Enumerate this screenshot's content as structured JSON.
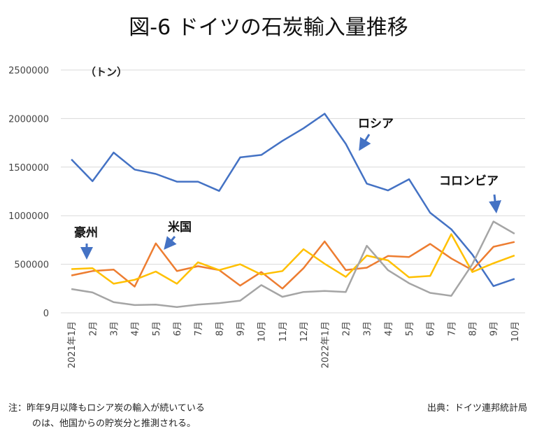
{
  "chart_data": {
    "type": "line",
    "title": "図-6 ドイツの石炭輸入量推移",
    "unit_label": "（トン）",
    "ylim": [
      0,
      2500000
    ],
    "yticks": [
      "0",
      "500000",
      "1000000",
      "1500000",
      "2000000",
      "2500000"
    ],
    "categories": [
      "2021年1月",
      "2月",
      "3月",
      "4月",
      "5月",
      "6月",
      "7月",
      "8月",
      "9月",
      "10月",
      "11月",
      "12月",
      "2022年1月",
      "2月",
      "3月",
      "4月",
      "5月",
      "6月",
      "7月",
      "8月",
      "9月",
      "10月"
    ],
    "series": [
      {
        "name": "ロシア",
        "color": "#4472C4",
        "values": [
          1580000,
          1355000,
          1650000,
          1475000,
          1430000,
          1350000,
          1350000,
          1255000,
          1600000,
          1625000,
          1770000,
          1900000,
          2050000,
          1740000,
          1330000,
          1260000,
          1375000,
          1030000,
          860000,
          600000,
          275000,
          350000
        ]
      },
      {
        "name": "米国",
        "color": "#ED7D31",
        "values": [
          385000,
          430000,
          445000,
          270000,
          715000,
          430000,
          480000,
          440000,
          280000,
          420000,
          250000,
          460000,
          735000,
          440000,
          465000,
          585000,
          575000,
          710000,
          560000,
          440000,
          680000,
          730000
        ]
      },
      {
        "name": "豪州",
        "color": "#FFC000",
        "values": [
          450000,
          460000,
          300000,
          340000,
          425000,
          300000,
          520000,
          440000,
          500000,
          395000,
          430000,
          655000,
          505000,
          370000,
          590000,
          540000,
          365000,
          380000,
          810000,
          420000,
          510000,
          590000
        ]
      },
      {
        "name": "コロンビア",
        "color": "#A5A5A5",
        "values": [
          245000,
          210000,
          110000,
          80000,
          85000,
          60000,
          85000,
          100000,
          125000,
          285000,
          165000,
          215000,
          225000,
          215000,
          690000,
          440000,
          305000,
          205000,
          175000,
          500000,
          940000,
          815000
        ]
      }
    ]
  },
  "labels": {
    "russia": "ロシア",
    "us": "米国",
    "australia": "豪州",
    "colombia": "コロンビア"
  },
  "note_line1": "注：昨年9月以降もロシア炭の輸入が続いている",
  "note_line2": "のは、他国からの貯炭分と推測される。",
  "source": "出典：ドイツ連邦統計局"
}
